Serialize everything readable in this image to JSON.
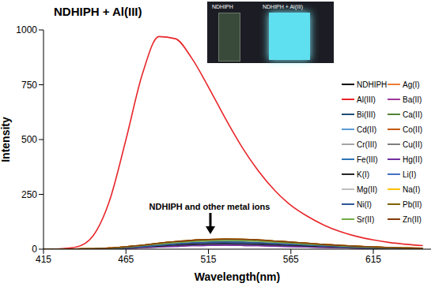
{
  "chart_data": {
    "type": "line",
    "title": "NDHIPH + Al(III)",
    "x_label": "Wavelength(nm)",
    "y_label": "Intensity",
    "annotation": "NDHIPH and other metal ions",
    "inset": {
      "labels": [
        "NDHIPH",
        "NDHIPH + Al(III)"
      ]
    },
    "grid": false,
    "legend": "right",
    "xlim": [
      415,
      650
    ],
    "xticks": [
      415,
      465,
      515,
      565,
      615
    ],
    "ylim": [
      0,
      1000
    ],
    "yticks": [
      0,
      250,
      500,
      750,
      1000
    ],
    "x": [
      415,
      425,
      435,
      445,
      455,
      465,
      475,
      485,
      495,
      505,
      515,
      525,
      535,
      545,
      555,
      565,
      575,
      585,
      595,
      605,
      615,
      625,
      635,
      645
    ],
    "series": [
      {
        "name": "NDHIPH",
        "color": "#000000",
        "values": [
          0,
          0,
          0,
          1,
          3,
          6,
          10,
          14,
          19,
          22,
          24,
          25,
          24,
          23,
          20,
          17,
          15,
          12,
          9,
          7,
          5,
          4,
          3,
          2
        ]
      },
      {
        "name": "Ag(I)",
        "color": "#ed7d31",
        "values": [
          0,
          0,
          1,
          2,
          5,
          11,
          18,
          27,
          34,
          40,
          44,
          46,
          45,
          42,
          37,
          32,
          27,
          21,
          17,
          13,
          10,
          7,
          5,
          4
        ]
      },
      {
        "name": "Al(III)",
        "color": "#e8262a",
        "values": [
          0,
          2,
          10,
          60,
          220,
          500,
          800,
          970,
          960,
          870,
          740,
          600,
          470,
          360,
          270,
          200,
          150,
          110,
          80,
          58,
          42,
          30,
          22,
          16
        ]
      },
      {
        "name": "Ba(II)",
        "color": "#a0399b",
        "values": [
          0,
          0,
          0,
          1,
          2,
          4,
          7,
          10,
          13,
          16,
          17,
          18,
          17,
          16,
          14,
          12,
          10,
          8,
          7,
          5,
          4,
          3,
          2,
          2
        ]
      },
      {
        "name": "Bi(III)",
        "color": "#1f4e79",
        "values": [
          0,
          0,
          1,
          1,
          3,
          7,
          12,
          18,
          24,
          28,
          31,
          32,
          31,
          29,
          26,
          22,
          19,
          15,
          12,
          9,
          7,
          5,
          4,
          3
        ]
      },
      {
        "name": "Ca(II)",
        "color": "#548235",
        "values": [
          0,
          0,
          1,
          2,
          4,
          9,
          16,
          23,
          30,
          35,
          38,
          40,
          39,
          36,
          32,
          28,
          23,
          19,
          15,
          11,
          8,
          6,
          5,
          3
        ]
      },
      {
        "name": "Cd(II)",
        "color": "#5b9bd5",
        "values": [
          0,
          0,
          1,
          1,
          3,
          7,
          12,
          18,
          24,
          28,
          31,
          32,
          31,
          29,
          26,
          22,
          19,
          15,
          12,
          9,
          7,
          5,
          4,
          3
        ]
      },
      {
        "name": "Co(II)",
        "color": "#c55a11",
        "values": [
          0,
          0,
          1,
          2,
          5,
          11,
          18,
          27,
          34,
          40,
          44,
          46,
          45,
          42,
          37,
          32,
          27,
          21,
          17,
          13,
          10,
          7,
          5,
          4
        ]
      },
      {
        "name": "Cr(III)",
        "color": "#a5a5a5",
        "values": [
          0,
          0,
          1,
          2,
          4,
          9,
          16,
          23,
          30,
          35,
          38,
          40,
          39,
          36,
          32,
          28,
          23,
          19,
          15,
          11,
          8,
          6,
          5,
          3
        ]
      },
      {
        "name": "Cu(II)",
        "color": "#7f7f7f",
        "values": [
          0,
          0,
          1,
          1,
          3,
          7,
          12,
          18,
          24,
          28,
          31,
          32,
          31,
          29,
          26,
          22,
          19,
          15,
          12,
          9,
          7,
          5,
          4,
          3
        ]
      },
      {
        "name": "Fe(III)",
        "color": "#2e75b6",
        "values": [
          0,
          0,
          0,
          1,
          3,
          6,
          10,
          14,
          19,
          22,
          24,
          25,
          24,
          23,
          20,
          17,
          15,
          12,
          9,
          7,
          5,
          4,
          3,
          2
        ]
      },
      {
        "name": "Hg(II)",
        "color": "#7030a0",
        "values": [
          0,
          0,
          0,
          1,
          2,
          4,
          7,
          10,
          13,
          16,
          17,
          18,
          17,
          16,
          14,
          12,
          10,
          8,
          7,
          5,
          4,
          3,
          2,
          2
        ]
      },
      {
        "name": "K(I)",
        "color": "#262626",
        "values": [
          0,
          0,
          0,
          1,
          3,
          6,
          10,
          14,
          19,
          22,
          24,
          25,
          24,
          23,
          20,
          17,
          15,
          12,
          9,
          7,
          5,
          4,
          3,
          2
        ]
      },
      {
        "name": "Li(I)",
        "color": "#4472c4",
        "values": [
          0,
          0,
          1,
          1,
          3,
          7,
          12,
          18,
          24,
          28,
          31,
          32,
          31,
          29,
          26,
          22,
          19,
          15,
          12,
          9,
          7,
          5,
          4,
          3
        ]
      },
      {
        "name": "Mg(II)",
        "color": "#bfbfbf",
        "values": [
          0,
          0,
          1,
          2,
          4,
          9,
          16,
          23,
          30,
          35,
          38,
          40,
          39,
          36,
          32,
          28,
          23,
          19,
          15,
          11,
          8,
          6,
          5,
          3
        ]
      },
      {
        "name": "Na(I)",
        "color": "#ffc000",
        "values": [
          0,
          0,
          1,
          2,
          5,
          11,
          18,
          27,
          34,
          40,
          44,
          46,
          45,
          42,
          37,
          32,
          27,
          21,
          17,
          13,
          10,
          7,
          5,
          4
        ]
      },
      {
        "name": "Ni(I)",
        "color": "#2f5597",
        "values": [
          0,
          0,
          1,
          1,
          3,
          7,
          12,
          18,
          24,
          28,
          31,
          32,
          31,
          29,
          26,
          22,
          19,
          15,
          12,
          9,
          7,
          5,
          4,
          3
        ]
      },
      {
        "name": "Pb(II)",
        "color": "#7f6000",
        "values": [
          0,
          0,
          1,
          2,
          5,
          11,
          18,
          27,
          34,
          40,
          44,
          46,
          45,
          42,
          37,
          32,
          27,
          21,
          17,
          13,
          10,
          7,
          5,
          4
        ]
      },
      {
        "name": "Sr(II)",
        "color": "#70ad47",
        "values": [
          0,
          0,
          1,
          2,
          4,
          9,
          16,
          23,
          30,
          35,
          38,
          40,
          39,
          36,
          32,
          28,
          23,
          19,
          15,
          11,
          8,
          6,
          5,
          3
        ]
      },
      {
        "name": "Zn(II)",
        "color": "#843c0c",
        "values": [
          0,
          0,
          1,
          2,
          5,
          11,
          18,
          27,
          34,
          40,
          44,
          46,
          45,
          42,
          37,
          32,
          27,
          21,
          17,
          13,
          10,
          7,
          5,
          4
        ]
      }
    ]
  }
}
